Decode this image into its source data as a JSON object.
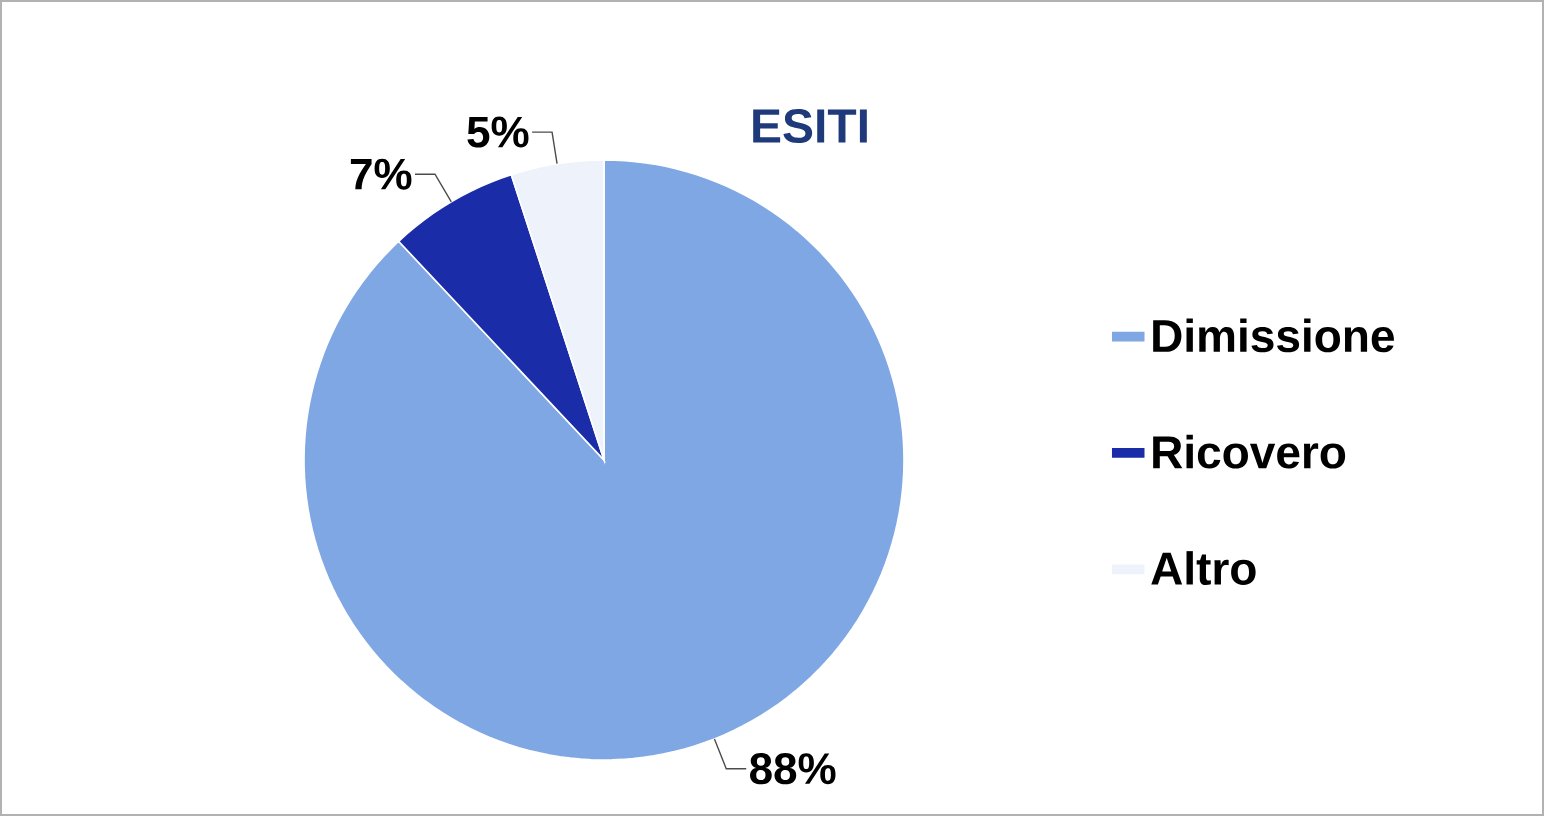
{
  "chart_data": {
    "type": "pie",
    "title": "ESITI",
    "categories": [
      "Dimissione",
      "Ricovero",
      "Altro"
    ],
    "values": [
      88,
      7,
      5
    ],
    "colors": [
      "#7fa7e3",
      "#1a2ca8",
      "#eef2fa"
    ],
    "value_labels": [
      "88%",
      "7%",
      "5%"
    ],
    "legend": "right"
  }
}
